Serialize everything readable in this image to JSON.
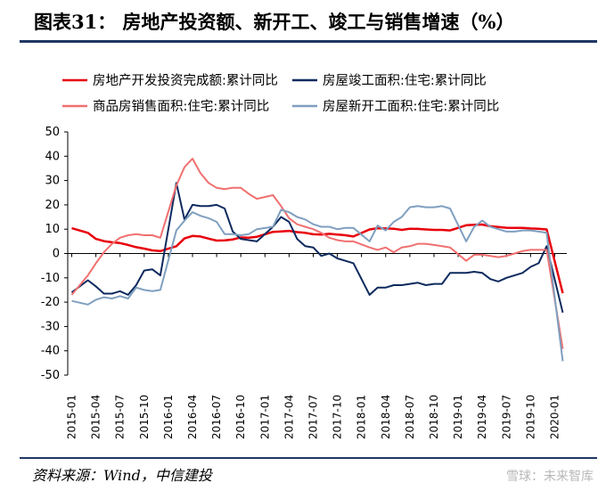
{
  "title": "图表31：  房地产投资额、新开工、竣工与销售增速（%）",
  "source": "资料来源：Wind，中信建投",
  "watermark": "雪球：未来智库",
  "chart_data": {
    "type": "line",
    "title": "",
    "xlabel": "",
    "ylabel": "",
    "ylim": [
      -50,
      50
    ],
    "yticks": [
      50,
      40,
      30,
      20,
      10,
      0,
      -10,
      -20,
      -30,
      -40,
      -50
    ],
    "grid": false,
    "legend_position": "top",
    "x": [
      "2015-01",
      "2015-02",
      "2015-03",
      "2015-04",
      "2015-05",
      "2015-06",
      "2015-07",
      "2015-08",
      "2015-09",
      "2015-10",
      "2015-11",
      "2015-12",
      "2016-01",
      "2016-02",
      "2016-03",
      "2016-04",
      "2016-05",
      "2016-06",
      "2016-07",
      "2016-08",
      "2016-09",
      "2016-10",
      "2016-11",
      "2016-12",
      "2017-01",
      "2017-02",
      "2017-03",
      "2017-04",
      "2017-05",
      "2017-06",
      "2017-07",
      "2017-08",
      "2017-09",
      "2017-10",
      "2017-11",
      "2017-12",
      "2018-01",
      "2018-02",
      "2018-03",
      "2018-04",
      "2018-05",
      "2018-06",
      "2018-07",
      "2018-08",
      "2018-09",
      "2018-10",
      "2018-11",
      "2018-12",
      "2019-01",
      "2019-02",
      "2019-03",
      "2019-04",
      "2019-05",
      "2019-06",
      "2019-07",
      "2019-08",
      "2019-09",
      "2019-10",
      "2019-11",
      "2019-12",
      "2020-01",
      "2020-02"
    ],
    "xtick_labels": [
      "2015-01",
      "2015-04",
      "2015-07",
      "2015-10",
      "2016-01",
      "2016-04",
      "2016-07",
      "2016-10",
      "2017-01",
      "2017-04",
      "2017-07",
      "2017-10",
      "2018-01",
      "2018-04",
      "2018-07",
      "2018-10",
      "2019-01",
      "2019-04",
      "2019-07",
      "2019-10",
      "2020-01"
    ],
    "series": [
      {
        "name": "房地产开发投资完成额:累计同比",
        "color": "#e8000b",
        "width": 2.5,
        "values": [
          10.4,
          null,
          8.5,
          6.0,
          5.1,
          4.6,
          4.3,
          3.5,
          2.6,
          2.0,
          1.3,
          1.0,
          null,
          3.0,
          6.2,
          7.2,
          7.0,
          6.1,
          5.3,
          5.4,
          5.8,
          6.6,
          6.5,
          6.9,
          null,
          8.9,
          9.1,
          9.3,
          8.8,
          8.5,
          7.9,
          7.8,
          8.1,
          7.8,
          7.5,
          7.0,
          null,
          9.9,
          10.4,
          10.3,
          10.2,
          9.7,
          10.2,
          10.1,
          9.9,
          9.7,
          9.7,
          9.5,
          null,
          11.6,
          11.8,
          11.9,
          11.2,
          10.9,
          10.6,
          10.5,
          10.5,
          10.3,
          10.2,
          9.9,
          null,
          -16.3
        ]
      },
      {
        "name": "房屋竣工面积:住宅:累计同比",
        "color": "#0d2a5e",
        "width": 2,
        "values": [
          -16.0,
          null,
          -11.0,
          -13.5,
          -16.5,
          -16.5,
          -15.5,
          -17.0,
          -13.0,
          -7.0,
          -6.5,
          -9.0,
          null,
          29.0,
          14.0,
          20.0,
          19.5,
          19.5,
          20.0,
          18.5,
          9.0,
          6.0,
          5.5,
          5.0,
          null,
          11.0,
          15.0,
          13.0,
          6.0,
          3.0,
          2.5,
          -1.0,
          0.0,
          -2.0,
          -3.0,
          -4.0,
          null,
          -17.0,
          -14.0,
          -14.0,
          -13.0,
          -13.0,
          -12.5,
          -12.0,
          -13.0,
          -12.5,
          -12.5,
          -8.0,
          null,
          -8.0,
          -7.5,
          -8.0,
          -10.5,
          -11.5,
          -10.0,
          -9.0,
          -8.0,
          -5.5,
          -4.0,
          3.0,
          null,
          -24.3
        ]
      },
      {
        "name": "商品房销售面积:住宅:累计同比",
        "color": "#f07070",
        "width": 2,
        "values": [
          -17.0,
          null,
          -9.0,
          -4.0,
          0.5,
          4.0,
          6.5,
          7.5,
          8.0,
          7.5,
          7.5,
          6.5,
          null,
          28.0,
          35.5,
          39.0,
          33.0,
          29.0,
          27.0,
          26.5,
          27.0,
          27.0,
          24.5,
          22.5,
          null,
          24.0,
          19.5,
          14.5,
          12.0,
          11.0,
          10.0,
          8.5,
          6.5,
          5.5,
          5.0,
          5.0,
          null,
          2.5,
          1.5,
          2.5,
          0.5,
          2.5,
          3.0,
          4.0,
          4.0,
          3.5,
          3.0,
          2.5,
          null,
          -3.0,
          -0.5,
          -0.5,
          -1.0,
          -1.5,
          -1.0,
          0.0,
          1.0,
          1.5,
          1.5,
          1.5,
          null,
          -39.2
        ]
      },
      {
        "name": "房屋新开工面积:住宅:累计同比",
        "color": "#7f9fbf",
        "width": 2,
        "values": [
          -19.5,
          null,
          -21.0,
          -19.0,
          -18.0,
          -18.5,
          -17.5,
          -18.5,
          -14.0,
          -15.0,
          -15.5,
          -15.0,
          null,
          9.5,
          13.5,
          17.0,
          15.5,
          14.5,
          13.0,
          8.0,
          8.0,
          7.5,
          8.0,
          10.0,
          null,
          11.0,
          18.0,
          17.0,
          15.0,
          14.0,
          12.0,
          11.0,
          11.0,
          10.0,
          10.5,
          10.5,
          null,
          5.0,
          11.5,
          9.5,
          13.0,
          15.0,
          19.0,
          19.5,
          19.0,
          19.0,
          19.5,
          18.5,
          null,
          5.0,
          11.0,
          13.5,
          11.0,
          10.0,
          9.0,
          9.0,
          9.5,
          9.5,
          9.0,
          8.5,
          null,
          -44.3
        ]
      }
    ]
  }
}
